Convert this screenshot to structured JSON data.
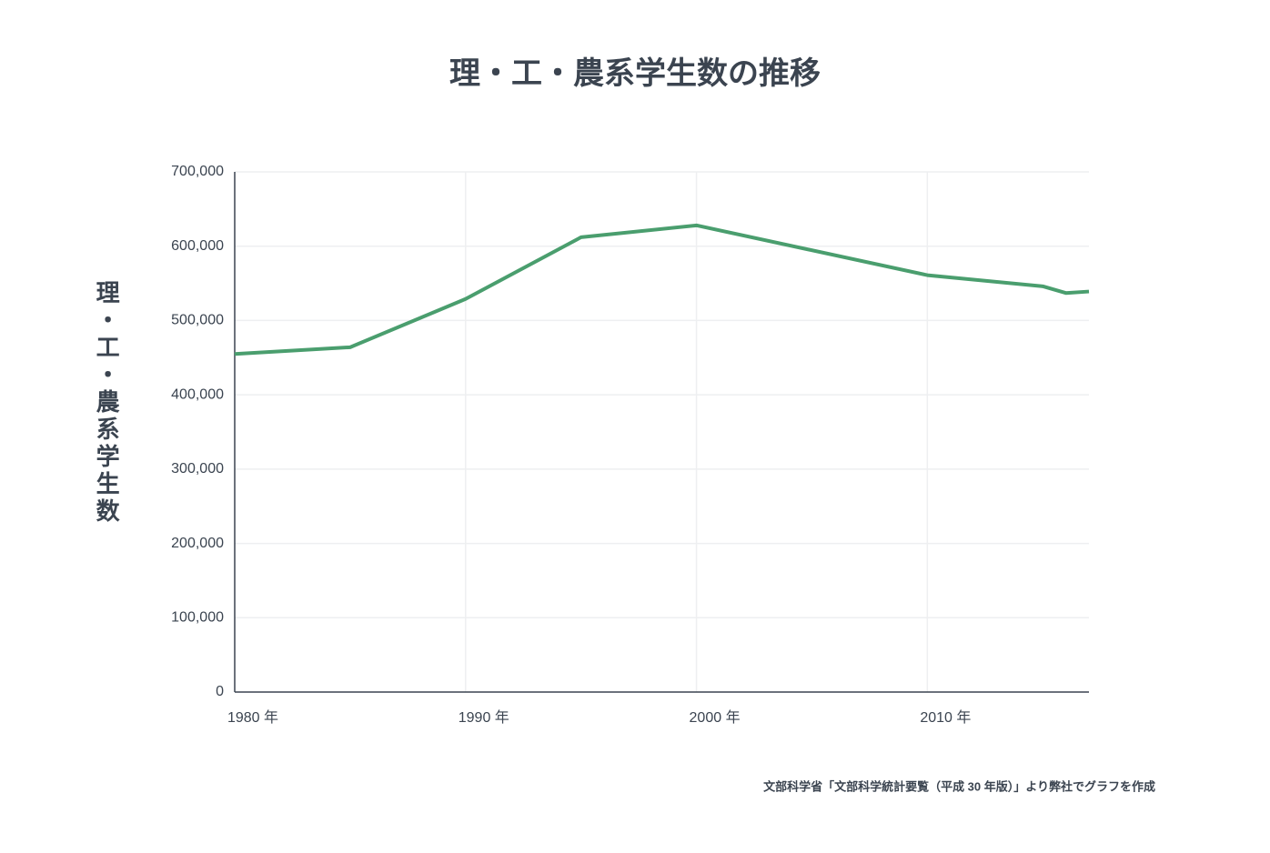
{
  "chart_data": {
    "type": "line",
    "title": "理・工・農系学生数の推移",
    "y_label": "理・工・農系学生数",
    "source": "文部科学省「文部科学統計要覧（平成 30 年版）」より弊社でグラフを作成",
    "x": [
      1980,
      1985,
      1990,
      1995,
      2000,
      2010,
      2015,
      2016,
      2017
    ],
    "series": [
      {
        "color": "#4a9e6e",
        "values": [
          455000,
          464000,
          529000,
          612000,
          628000,
          561000,
          546000,
          537000,
          539000
        ]
      }
    ],
    "xlim": [
      1980,
      2017
    ],
    "xticks": [
      {
        "value": 1980,
        "label": "1980 年"
      },
      {
        "value": 1990,
        "label": "1990 年"
      },
      {
        "value": 2000,
        "label": "2000 年"
      },
      {
        "value": 2010,
        "label": "2010 年"
      }
    ],
    "ylim": [
      0,
      700000
    ],
    "yticks": [
      0,
      {
        "value": 100000,
        "label": "100,000"
      },
      {
        "value": 200000,
        "label": "200,000"
      },
      {
        "value": 300000,
        "label": "300,000"
      },
      {
        "value": 400000,
        "label": "400,000"
      },
      {
        "value": 500000,
        "label": "500,000"
      },
      {
        "value": 600000,
        "label": "600,000"
      },
      {
        "value": 700000,
        "label": "700,000"
      }
    ],
    "grid": true
  }
}
